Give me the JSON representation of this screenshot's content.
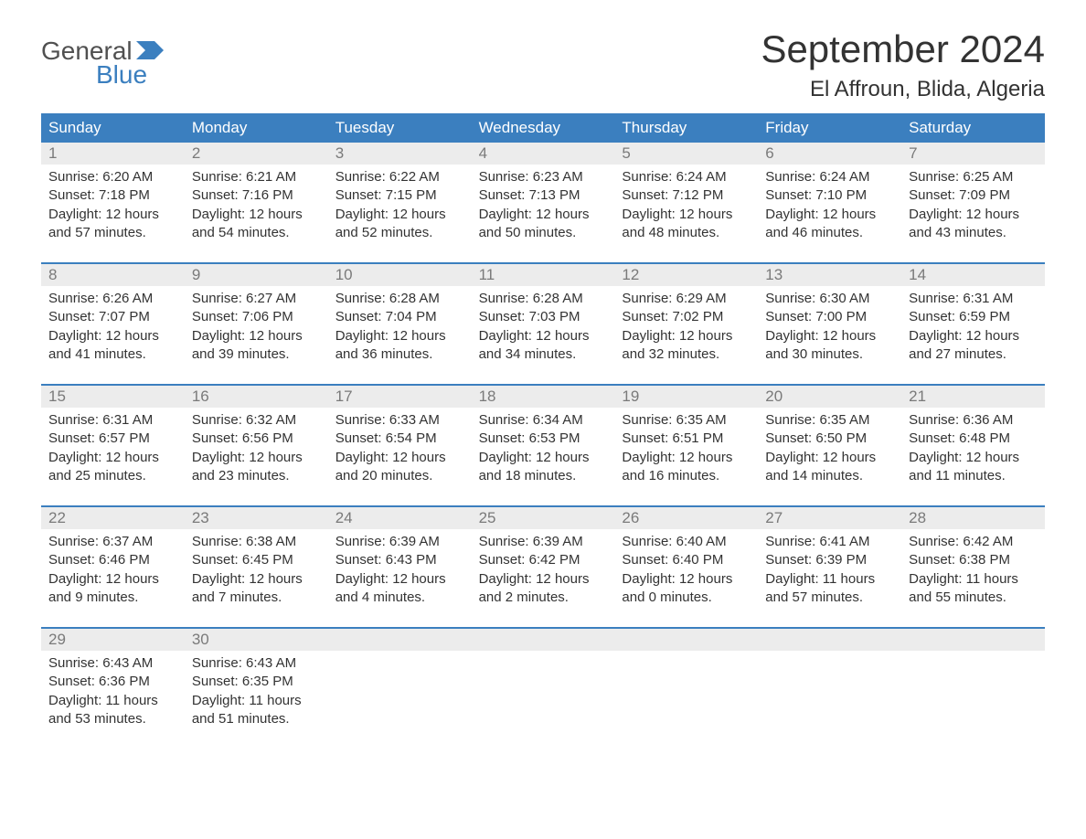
{
  "brand": {
    "part1": "General",
    "part2": "Blue"
  },
  "title": "September 2024",
  "location": "El Affroun, Blida, Algeria",
  "colors": {
    "header_bg": "#3b7fbf",
    "header_text": "#ffffff",
    "daynum_bg": "#ececec",
    "daynum_text": "#7a7a7a",
    "body_text": "#333333",
    "week_border": "#3b7fbf",
    "brand_gray": "#505050",
    "brand_blue": "#3b7fbf",
    "page_bg": "#ffffff"
  },
  "typography": {
    "title_fontsize": 42,
    "location_fontsize": 24,
    "dayheader_fontsize": 17,
    "daynum_fontsize": 17,
    "body_fontsize": 15,
    "logo_fontsize": 28
  },
  "day_names": [
    "Sunday",
    "Monday",
    "Tuesday",
    "Wednesday",
    "Thursday",
    "Friday",
    "Saturday"
  ],
  "weeks": [
    [
      {
        "num": "1",
        "sunrise": "Sunrise: 6:20 AM",
        "sunset": "Sunset: 7:18 PM",
        "dl1": "Daylight: 12 hours",
        "dl2": "and 57 minutes."
      },
      {
        "num": "2",
        "sunrise": "Sunrise: 6:21 AM",
        "sunset": "Sunset: 7:16 PM",
        "dl1": "Daylight: 12 hours",
        "dl2": "and 54 minutes."
      },
      {
        "num": "3",
        "sunrise": "Sunrise: 6:22 AM",
        "sunset": "Sunset: 7:15 PM",
        "dl1": "Daylight: 12 hours",
        "dl2": "and 52 minutes."
      },
      {
        "num": "4",
        "sunrise": "Sunrise: 6:23 AM",
        "sunset": "Sunset: 7:13 PM",
        "dl1": "Daylight: 12 hours",
        "dl2": "and 50 minutes."
      },
      {
        "num": "5",
        "sunrise": "Sunrise: 6:24 AM",
        "sunset": "Sunset: 7:12 PM",
        "dl1": "Daylight: 12 hours",
        "dl2": "and 48 minutes."
      },
      {
        "num": "6",
        "sunrise": "Sunrise: 6:24 AM",
        "sunset": "Sunset: 7:10 PM",
        "dl1": "Daylight: 12 hours",
        "dl2": "and 46 minutes."
      },
      {
        "num": "7",
        "sunrise": "Sunrise: 6:25 AM",
        "sunset": "Sunset: 7:09 PM",
        "dl1": "Daylight: 12 hours",
        "dl2": "and 43 minutes."
      }
    ],
    [
      {
        "num": "8",
        "sunrise": "Sunrise: 6:26 AM",
        "sunset": "Sunset: 7:07 PM",
        "dl1": "Daylight: 12 hours",
        "dl2": "and 41 minutes."
      },
      {
        "num": "9",
        "sunrise": "Sunrise: 6:27 AM",
        "sunset": "Sunset: 7:06 PM",
        "dl1": "Daylight: 12 hours",
        "dl2": "and 39 minutes."
      },
      {
        "num": "10",
        "sunrise": "Sunrise: 6:28 AM",
        "sunset": "Sunset: 7:04 PM",
        "dl1": "Daylight: 12 hours",
        "dl2": "and 36 minutes."
      },
      {
        "num": "11",
        "sunrise": "Sunrise: 6:28 AM",
        "sunset": "Sunset: 7:03 PM",
        "dl1": "Daylight: 12 hours",
        "dl2": "and 34 minutes."
      },
      {
        "num": "12",
        "sunrise": "Sunrise: 6:29 AM",
        "sunset": "Sunset: 7:02 PM",
        "dl1": "Daylight: 12 hours",
        "dl2": "and 32 minutes."
      },
      {
        "num": "13",
        "sunrise": "Sunrise: 6:30 AM",
        "sunset": "Sunset: 7:00 PM",
        "dl1": "Daylight: 12 hours",
        "dl2": "and 30 minutes."
      },
      {
        "num": "14",
        "sunrise": "Sunrise: 6:31 AM",
        "sunset": "Sunset: 6:59 PM",
        "dl1": "Daylight: 12 hours",
        "dl2": "and 27 minutes."
      }
    ],
    [
      {
        "num": "15",
        "sunrise": "Sunrise: 6:31 AM",
        "sunset": "Sunset: 6:57 PM",
        "dl1": "Daylight: 12 hours",
        "dl2": "and 25 minutes."
      },
      {
        "num": "16",
        "sunrise": "Sunrise: 6:32 AM",
        "sunset": "Sunset: 6:56 PM",
        "dl1": "Daylight: 12 hours",
        "dl2": "and 23 minutes."
      },
      {
        "num": "17",
        "sunrise": "Sunrise: 6:33 AM",
        "sunset": "Sunset: 6:54 PM",
        "dl1": "Daylight: 12 hours",
        "dl2": "and 20 minutes."
      },
      {
        "num": "18",
        "sunrise": "Sunrise: 6:34 AM",
        "sunset": "Sunset: 6:53 PM",
        "dl1": "Daylight: 12 hours",
        "dl2": "and 18 minutes."
      },
      {
        "num": "19",
        "sunrise": "Sunrise: 6:35 AM",
        "sunset": "Sunset: 6:51 PM",
        "dl1": "Daylight: 12 hours",
        "dl2": "and 16 minutes."
      },
      {
        "num": "20",
        "sunrise": "Sunrise: 6:35 AM",
        "sunset": "Sunset: 6:50 PM",
        "dl1": "Daylight: 12 hours",
        "dl2": "and 14 minutes."
      },
      {
        "num": "21",
        "sunrise": "Sunrise: 6:36 AM",
        "sunset": "Sunset: 6:48 PM",
        "dl1": "Daylight: 12 hours",
        "dl2": "and 11 minutes."
      }
    ],
    [
      {
        "num": "22",
        "sunrise": "Sunrise: 6:37 AM",
        "sunset": "Sunset: 6:46 PM",
        "dl1": "Daylight: 12 hours",
        "dl2": "and 9 minutes."
      },
      {
        "num": "23",
        "sunrise": "Sunrise: 6:38 AM",
        "sunset": "Sunset: 6:45 PM",
        "dl1": "Daylight: 12 hours",
        "dl2": "and 7 minutes."
      },
      {
        "num": "24",
        "sunrise": "Sunrise: 6:39 AM",
        "sunset": "Sunset: 6:43 PM",
        "dl1": "Daylight: 12 hours",
        "dl2": "and 4 minutes."
      },
      {
        "num": "25",
        "sunrise": "Sunrise: 6:39 AM",
        "sunset": "Sunset: 6:42 PM",
        "dl1": "Daylight: 12 hours",
        "dl2": "and 2 minutes."
      },
      {
        "num": "26",
        "sunrise": "Sunrise: 6:40 AM",
        "sunset": "Sunset: 6:40 PM",
        "dl1": "Daylight: 12 hours",
        "dl2": "and 0 minutes."
      },
      {
        "num": "27",
        "sunrise": "Sunrise: 6:41 AM",
        "sunset": "Sunset: 6:39 PM",
        "dl1": "Daylight: 11 hours",
        "dl2": "and 57 minutes."
      },
      {
        "num": "28",
        "sunrise": "Sunrise: 6:42 AM",
        "sunset": "Sunset: 6:38 PM",
        "dl1": "Daylight: 11 hours",
        "dl2": "and 55 minutes."
      }
    ],
    [
      {
        "num": "29",
        "sunrise": "Sunrise: 6:43 AM",
        "sunset": "Sunset: 6:36 PM",
        "dl1": "Daylight: 11 hours",
        "dl2": "and 53 minutes."
      },
      {
        "num": "30",
        "sunrise": "Sunrise: 6:43 AM",
        "sunset": "Sunset: 6:35 PM",
        "dl1": "Daylight: 11 hours",
        "dl2": "and 51 minutes."
      },
      {
        "num": "",
        "sunrise": "",
        "sunset": "",
        "dl1": "",
        "dl2": ""
      },
      {
        "num": "",
        "sunrise": "",
        "sunset": "",
        "dl1": "",
        "dl2": ""
      },
      {
        "num": "",
        "sunrise": "",
        "sunset": "",
        "dl1": "",
        "dl2": ""
      },
      {
        "num": "",
        "sunrise": "",
        "sunset": "",
        "dl1": "",
        "dl2": ""
      },
      {
        "num": "",
        "sunrise": "",
        "sunset": "",
        "dl1": "",
        "dl2": ""
      }
    ]
  ]
}
